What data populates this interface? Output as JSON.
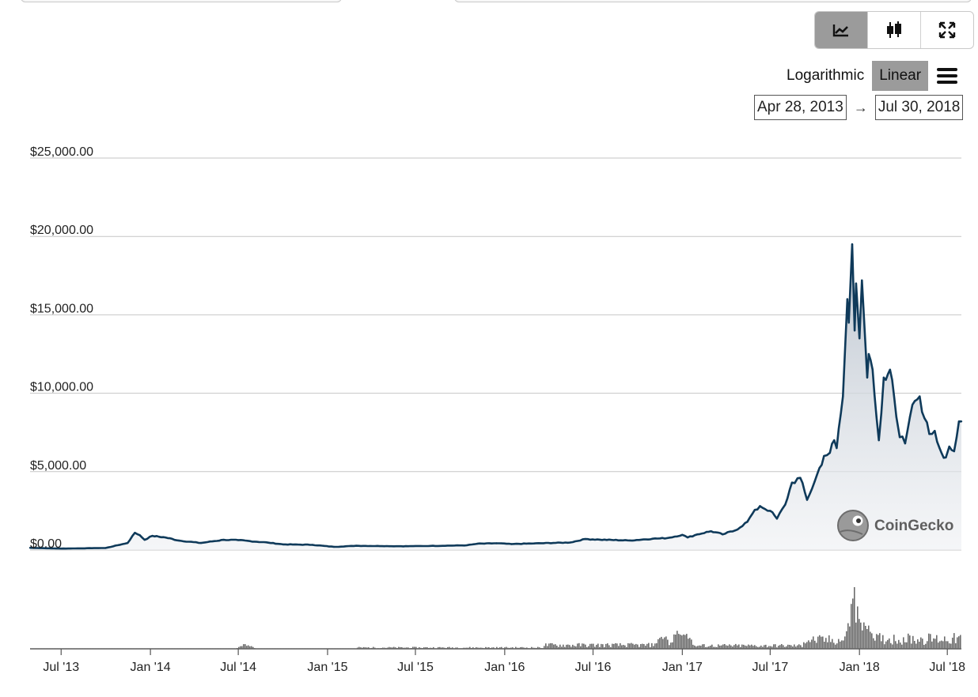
{
  "toolbar": {
    "chart_types": [
      {
        "name": "line-chart-icon",
        "active": true
      },
      {
        "name": "candlestick-icon",
        "active": false
      },
      {
        "name": "fullscreen-icon",
        "active": false
      }
    ],
    "scale_log_label": "Logarithmic",
    "scale_linear_label": "Linear",
    "active_scale": "Linear",
    "menu_icon": "hamburger-menu-icon"
  },
  "range": {
    "from": "Apr 28, 2013",
    "arrow": "→",
    "to": "Jul 30, 2018"
  },
  "watermark": {
    "brand": "CoinGecko",
    "icon": "gecko-logo-icon"
  },
  "colors": {
    "line": "#0f3a5a",
    "area_top": "#b8c1cc",
    "grid": "#c6c6c6",
    "volume": "#6b6b6b",
    "active_button": "#9b9b9b"
  },
  "chart_data": {
    "type": "area",
    "title": "",
    "xlabel": "",
    "ylabel": "",
    "ylim": [
      0,
      25000
    ],
    "y_ticks": [
      "$0.00",
      "$5,000.00",
      "$10,000.00",
      "$15,000.00",
      "$20,000.00",
      "$25,000.00"
    ],
    "x_ticks": [
      "Jul '13",
      "Jan '14",
      "Jul '14",
      "Jan '15",
      "Jul '15",
      "Jan '16",
      "Jul '16",
      "Jan '17",
      "Jul '17",
      "Jan '18",
      "Jul '18"
    ],
    "x_range": [
      "2013-04-28",
      "2018-07-30"
    ],
    "grid": true,
    "series": [
      {
        "name": "",
        "x": [
          "2013-04-28",
          "2013-07-01",
          "2013-10-01",
          "2013-11-15",
          "2013-11-30",
          "2013-12-10",
          "2013-12-20",
          "2014-01-05",
          "2014-02-01",
          "2014-03-01",
          "2014-04-15",
          "2014-06-01",
          "2014-07-01",
          "2014-09-01",
          "2014-10-01",
          "2014-12-01",
          "2015-01-14",
          "2015-03-01",
          "2015-06-01",
          "2015-08-01",
          "2015-10-15",
          "2015-11-05",
          "2015-12-15",
          "2016-01-15",
          "2016-03-01",
          "2016-05-15",
          "2016-06-15",
          "2016-07-15",
          "2016-09-15",
          "2016-11-01",
          "2016-12-01",
          "2017-01-01",
          "2017-01-12",
          "2017-02-01",
          "2017-03-01",
          "2017-03-25",
          "2017-04-20",
          "2017-05-15",
          "2017-05-25",
          "2017-06-10",
          "2017-07-01",
          "2017-07-15",
          "2017-08-01",
          "2017-08-15",
          "2017-09-01",
          "2017-09-15",
          "2017-10-01",
          "2017-10-20",
          "2017-11-01",
          "2017-11-10",
          "2017-11-15",
          "2017-11-28",
          "2017-12-07",
          "2017-12-10",
          "2017-12-17",
          "2017-12-22",
          "2017-12-25",
          "2018-01-01",
          "2018-01-06",
          "2018-01-10",
          "2018-01-17",
          "2018-01-20",
          "2018-01-28",
          "2018-02-05",
          "2018-02-10",
          "2018-02-20",
          "2018-03-05",
          "2018-03-18",
          "2018-03-25",
          "2018-04-05",
          "2018-04-15",
          "2018-04-25",
          "2018-05-05",
          "2018-05-15",
          "2018-05-25",
          "2018-06-05",
          "2018-06-15",
          "2018-06-28",
          "2018-07-05",
          "2018-07-15",
          "2018-07-25",
          "2018-07-30"
        ],
        "values": [
          140,
          90,
          130,
          450,
          1100,
          950,
          650,
          900,
          800,
          600,
          450,
          650,
          630,
          470,
          360,
          330,
          200,
          270,
          240,
          260,
          300,
          400,
          430,
          380,
          420,
          480,
          700,
          660,
          610,
          720,
          760,
          970,
          800,
          1000,
          1200,
          1000,
          1250,
          1800,
          2300,
          2800,
          2500,
          2000,
          2900,
          4300,
          4600,
          3200,
          4400,
          6000,
          6200,
          7000,
          6500,
          9800,
          16000,
          14500,
          19500,
          14000,
          17000,
          13500,
          17200,
          15000,
          11000,
          12500,
          11500,
          8500,
          7000,
          11000,
          11500,
          8500,
          7200,
          6800,
          8500,
          9500,
          9800,
          8400,
          7400,
          7600,
          6500,
          5900,
          6600,
          6300,
          8200,
          8200
        ]
      }
    ],
    "volume": {
      "name": "",
      "note": "relative trading volume bars",
      "peaks": [
        {
          "x": "2014-07-15",
          "v": 0.09
        },
        {
          "x": "2016-11-20",
          "v": 0.28
        },
        {
          "x": "2016-12-20",
          "v": 0.33
        },
        {
          "x": "2017-01-05",
          "v": 0.42
        },
        {
          "x": "2017-12-20",
          "v": 1.0
        },
        {
          "x": "2018-01-15",
          "v": 0.55
        }
      ]
    },
    "legend": "none"
  }
}
